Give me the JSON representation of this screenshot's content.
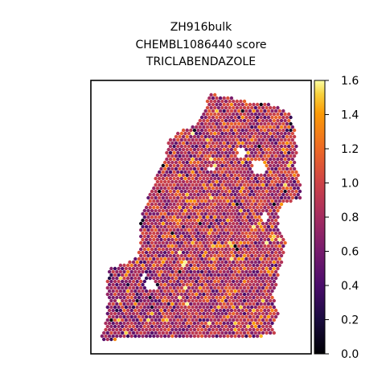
{
  "chart_data": {
    "type": "scatter",
    "title_lines": [
      "ZH916bulk",
      "CHEMBL1086440 score",
      "TRICLABENDAZOLE"
    ],
    "colormap": "inferno",
    "colorbar": {
      "min": 0.0,
      "max": 1.6,
      "ticks": [
        "0.0",
        "0.2",
        "0.4",
        "0.6",
        "0.8",
        "1.0",
        "1.2",
        "1.4",
        "1.6"
      ]
    },
    "grid": false,
    "axes_ticks_visible": false,
    "description_of_values": "spatial spot scores, mostly between 0.5 and 1.3 with sparse near-zero spots along the left edge and a few highs near 1.5"
  },
  "colors": {
    "frame": "#000000",
    "background": "#ffffff"
  }
}
